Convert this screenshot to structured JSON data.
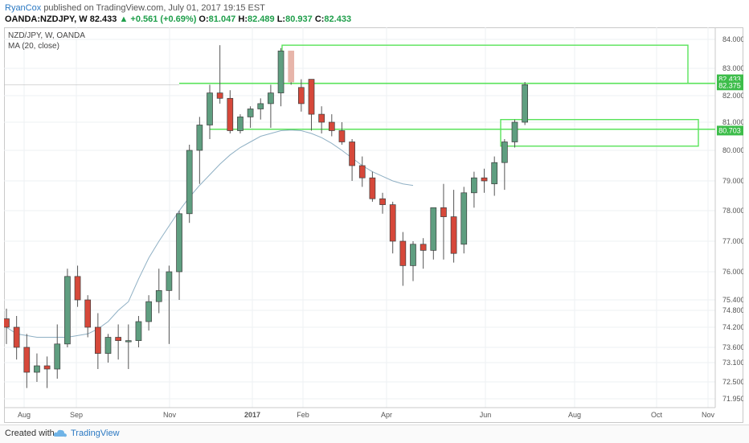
{
  "header": {
    "author": "RyanCox",
    "published": "published on TradingView.com, July 01, 2017 19:15 EST",
    "symbol": "OANDA:NZDJPY, W",
    "last": "82.433",
    "arrow": "▲",
    "change": "+0.561 (+0.69%)",
    "o_label": "O:",
    "o_value": "81.047",
    "h_label": "H:",
    "h_value": "82.489",
    "l_label": "L:",
    "l_value": "80.937",
    "c_label": "C:",
    "c_value": "82.433"
  },
  "legend": {
    "title": "NZD/JPY, W, OANDA",
    "indicator": "MA (20, close)"
  },
  "footer": {
    "created_with": "Created with",
    "brand": "TradingView"
  },
  "colors": {
    "up": "#5f9e80",
    "down": "#d6483a",
    "ma": "#8fb0c4",
    "zone": "#59e35a",
    "ghost": "#e7b5aa",
    "price_tag": "#3dbd4a"
  },
  "chart_data": {
    "type": "candlestick",
    "title": "NZD/JPY, W, OANDA",
    "ylim": [
      71.95,
      84.0
    ],
    "y_ticks": [
      "84.000",
      "83.000",
      "82.000",
      "81.000",
      "80.000",
      "79.000",
      "78.000",
      "77.000",
      "76.000",
      "75.400",
      "74.800",
      "74.200",
      "73.600",
      "73.100",
      "72.500",
      "71.950"
    ],
    "x_ticks": [
      "Aug",
      "Sep",
      "Nov",
      "2017",
      "Feb",
      "Apr",
      "Jun",
      "Aug",
      "Oct",
      "Nov"
    ],
    "price_labels": [
      "82.433",
      "82.375",
      "80.703"
    ],
    "ma_label": "MA (20, close)",
    "candles": [
      {
        "o": 74.5,
        "h": 74.9,
        "l": 73.7,
        "c": 74.2
      },
      {
        "o": 74.2,
        "h": 74.6,
        "l": 73.2,
        "c": 73.6
      },
      {
        "o": 73.6,
        "h": 74.0,
        "l": 72.3,
        "c": 72.8
      },
      {
        "o": 72.8,
        "h": 73.4,
        "l": 72.5,
        "c": 73.0
      },
      {
        "o": 73.0,
        "h": 73.3,
        "l": 72.3,
        "c": 72.9
      },
      {
        "o": 72.9,
        "h": 74.3,
        "l": 72.6,
        "c": 73.7
      },
      {
        "o": 73.7,
        "h": 76.1,
        "l": 73.6,
        "c": 75.9
      },
      {
        "o": 75.9,
        "h": 76.2,
        "l": 75.0,
        "c": 75.4
      },
      {
        "o": 75.4,
        "h": 75.5,
        "l": 73.9,
        "c": 74.2
      },
      {
        "o": 74.2,
        "h": 74.7,
        "l": 72.9,
        "c": 73.4
      },
      {
        "o": 73.4,
        "h": 74.0,
        "l": 73.1,
        "c": 73.9
      },
      {
        "o": 73.9,
        "h": 74.3,
        "l": 73.2,
        "c": 73.8
      },
      {
        "o": 73.8,
        "h": 74.3,
        "l": 72.9,
        "c": 73.8
      },
      {
        "o": 73.8,
        "h": 74.6,
        "l": 73.6,
        "c": 74.4
      },
      {
        "o": 74.4,
        "h": 75.5,
        "l": 74.1,
        "c": 75.3
      },
      {
        "o": 75.3,
        "h": 76.1,
        "l": 74.7,
        "c": 75.6
      },
      {
        "o": 75.6,
        "h": 76.2,
        "l": 73.7,
        "c": 76.0
      },
      {
        "o": 76.0,
        "h": 78.0,
        "l": 75.4,
        "c": 77.9
      },
      {
        "o": 77.9,
        "h": 80.2,
        "l": 77.6,
        "c": 80.0
      },
      {
        "o": 80.0,
        "h": 81.2,
        "l": 78.9,
        "c": 80.9
      },
      {
        "o": 80.9,
        "h": 82.4,
        "l": 80.4,
        "c": 82.1
      },
      {
        "o": 82.1,
        "h": 83.8,
        "l": 81.7,
        "c": 81.9
      },
      {
        "o": 81.9,
        "h": 82.2,
        "l": 80.6,
        "c": 80.7
      },
      {
        "o": 80.7,
        "h": 81.3,
        "l": 80.6,
        "c": 81.2
      },
      {
        "o": 81.2,
        "h": 81.6,
        "l": 80.8,
        "c": 81.5
      },
      {
        "o": 81.5,
        "h": 81.9,
        "l": 81.1,
        "c": 81.7
      },
      {
        "o": 81.7,
        "h": 82.4,
        "l": 80.8,
        "c": 82.1
      },
      {
        "o": 82.1,
        "h": 83.7,
        "l": 81.6,
        "c": 83.6
      },
      {
        "o": 83.6,
        "h": 83.6,
        "l": 82.4,
        "c": 82.5,
        "ghost": true
      },
      {
        "o": 82.3,
        "h": 82.6,
        "l": 81.4,
        "c": 81.7
      },
      {
        "o": 82.6,
        "h": 82.6,
        "l": 80.7,
        "c": 81.3
      },
      {
        "o": 81.3,
        "h": 81.6,
        "l": 80.6,
        "c": 81.0
      },
      {
        "o": 81.0,
        "h": 81.3,
        "l": 80.5,
        "c": 80.7
      },
      {
        "o": 80.7,
        "h": 81.0,
        "l": 80.2,
        "c": 80.3
      },
      {
        "o": 80.3,
        "h": 80.4,
        "l": 79.0,
        "c": 79.5
      },
      {
        "o": 79.5,
        "h": 79.8,
        "l": 78.8,
        "c": 79.1
      },
      {
        "o": 79.1,
        "h": 79.3,
        "l": 78.3,
        "c": 78.4
      },
      {
        "o": 78.4,
        "h": 78.6,
        "l": 77.9,
        "c": 78.2
      },
      {
        "o": 78.2,
        "h": 78.3,
        "l": 76.6,
        "c": 77.0
      },
      {
        "o": 77.0,
        "h": 77.3,
        "l": 75.7,
        "c": 76.2
      },
      {
        "o": 76.2,
        "h": 77.0,
        "l": 75.8,
        "c": 76.9
      },
      {
        "o": 76.9,
        "h": 77.1,
        "l": 76.1,
        "c": 76.7
      },
      {
        "o": 76.7,
        "h": 78.1,
        "l": 76.4,
        "c": 78.1
      },
      {
        "o": 78.1,
        "h": 78.9,
        "l": 76.4,
        "c": 77.8
      },
      {
        "o": 77.8,
        "h": 78.7,
        "l": 76.3,
        "c": 76.6
      },
      {
        "o": 76.9,
        "h": 78.8,
        "l": 76.6,
        "c": 78.6
      },
      {
        "o": 78.6,
        "h": 79.3,
        "l": 78.1,
        "c": 79.1
      },
      {
        "o": 79.1,
        "h": 79.4,
        "l": 78.6,
        "c": 79.0
      },
      {
        "o": 78.9,
        "h": 79.8,
        "l": 78.5,
        "c": 79.6
      },
      {
        "o": 79.6,
        "h": 80.4,
        "l": 78.7,
        "c": 80.3
      },
      {
        "o": 80.3,
        "h": 81.1,
        "l": 80.1,
        "c": 81.0
      },
      {
        "o": 81.0,
        "h": 82.5,
        "l": 80.9,
        "c": 82.4
      }
    ],
    "ma": [
      74.2,
      74.0,
      73.95,
      73.9,
      73.9,
      73.9,
      73.9,
      73.95,
      74.0,
      74.15,
      74.4,
      74.8,
      75.3,
      75.85,
      76.45,
      77.0,
      77.5,
      78.0,
      78.45,
      78.85,
      79.2,
      79.55,
      79.85,
      80.1,
      80.3,
      80.5,
      80.6,
      80.7,
      80.72,
      80.7,
      80.6,
      80.45,
      80.25,
      80.0,
      79.75,
      79.5,
      79.3,
      79.15,
      79.0,
      78.9,
      78.85
    ]
  }
}
